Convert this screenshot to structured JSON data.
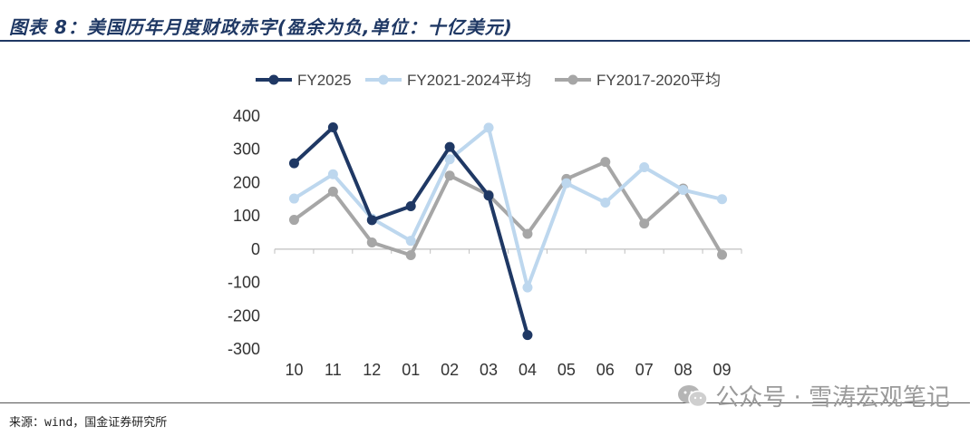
{
  "header": {
    "title": "图表 8：美国历年月度财政赤字(盈余为负,单位：十亿美元)"
  },
  "footer": {
    "source": "来源：wind，国金证券研究所",
    "watermark": "公众号 · 雪涛宏观笔记"
  },
  "chart_data": {
    "type": "line",
    "categories": [
      "10",
      "11",
      "12",
      "01",
      "02",
      "03",
      "04",
      "05",
      "06",
      "07",
      "08",
      "09"
    ],
    "ylim": [
      -300,
      400
    ],
    "yticks": [
      400,
      300,
      200,
      100,
      0,
      -100,
      -200,
      -300
    ],
    "ytick_labels": [
      "400",
      "300",
      "200",
      "100",
      "0",
      "-100",
      "-200",
      "-300"
    ],
    "legend_position": "top",
    "grid": false,
    "series": [
      {
        "name": "FY2025",
        "color": "#1f3864",
        "values": [
          258,
          366,
          87,
          129,
          307,
          161,
          -258,
          null,
          null,
          null,
          null,
          null
        ]
      },
      {
        "name": "FY2021-2024平均",
        "color": "#bdd7ee",
        "values": [
          152,
          225,
          92,
          25,
          270,
          365,
          -115,
          198,
          140,
          246,
          178,
          150
        ]
      },
      {
        "name": "FY2017-2020平均",
        "color": "#a6a6a6",
        "values": [
          88,
          173,
          20,
          -18,
          221,
          163,
          46,
          211,
          262,
          77,
          182,
          -17
        ]
      }
    ]
  }
}
